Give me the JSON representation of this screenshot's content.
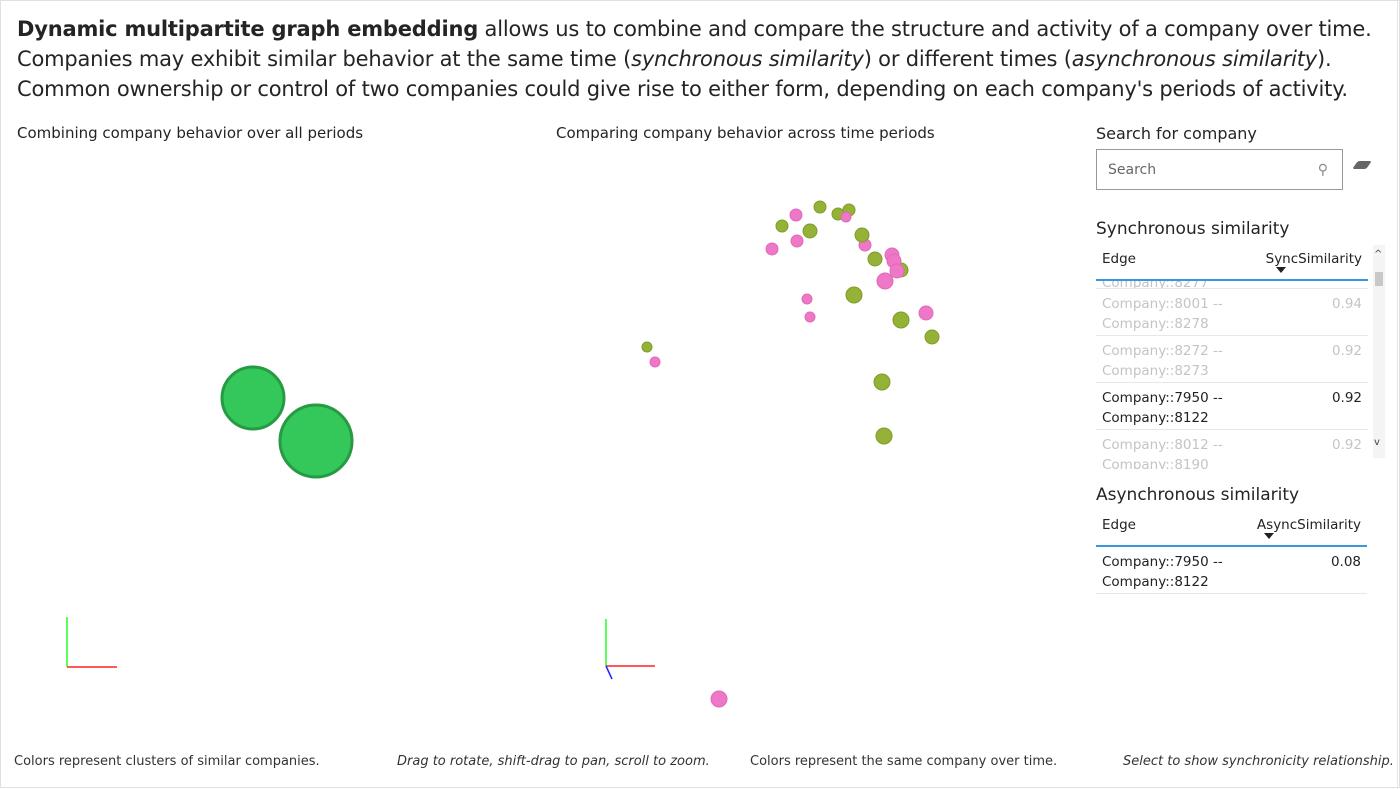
{
  "intro": {
    "bold": "Dynamic multipartite graph embedding",
    "line1_rest": " allows us to combine and compare the structure and activity of a company over time.",
    "line2_a": "Companies may exhibit similar behavior at the same time (",
    "line2_i1": "synchronous similarity",
    "line2_b": ") or different times (",
    "line2_i2": "asynchronous similarity",
    "line2_c": ").",
    "line3": "Common ownership or control of two companies could give rise to either form, depending on each company's periods of activity."
  },
  "left_panel": {
    "title": "Combining company behavior over all periods",
    "caption": "Colors represent clusters of similar companies.",
    "cluster_color": "#34c759"
  },
  "mid_panel": {
    "title": "Comparing company behavior across time periods",
    "caption": "Colors represent the same company over time.",
    "series_colors": {
      "green": "#93b236",
      "pink": "#ef77c8"
    }
  },
  "hint": "Drag to rotate, shift-drag to pan, scroll to zoom.",
  "select_hint": "Select to show synchronicity relationship.",
  "search": {
    "title": "Search for company",
    "placeholder": "Search",
    "icon": "search-icon",
    "clear_icon": "eraser-icon"
  },
  "sync": {
    "title": "Synchronous similarity",
    "col_edge": "Edge",
    "col_value": "SyncSimilarity",
    "partial_row": "Company::8277",
    "rows": [
      {
        "a": "Company::8001 --",
        "b": "Company::8278",
        "v": "0.94",
        "selected": false
      },
      {
        "a": "Company::8272 --",
        "b": "Company::8273",
        "v": "0.92",
        "selected": false
      },
      {
        "a": "Company::7950 --",
        "b": "Company::8122",
        "v": "0.92",
        "selected": true
      },
      {
        "a": "Company::8012 --",
        "b": "Company::8190",
        "v": "0.92",
        "selected": false
      }
    ]
  },
  "async": {
    "title": "Asynchronous similarity",
    "col_edge": "Edge",
    "col_value": "AsyncSimilarity",
    "rows": [
      {
        "a": "Company::7950 --",
        "b": "Company::8122",
        "v": "0.08"
      }
    ]
  }
}
